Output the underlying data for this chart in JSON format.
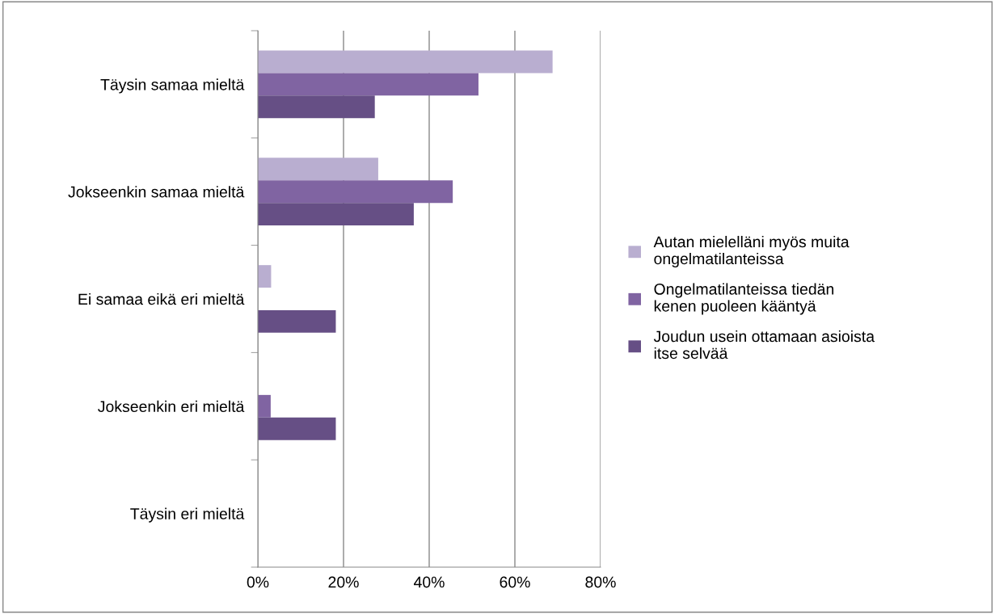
{
  "chart_data": {
    "type": "bar",
    "orientation": "horizontal",
    "categories": [
      "Täysin samaa mieltä",
      "Jokseenkin samaa mieltä",
      "Ei samaa eikä eri mieltä",
      "Jokseenkin eri mieltä",
      "Täysin eri mieltä"
    ],
    "series": [
      {
        "name": "Autan mielelläni myös muita ongelmatilanteissa",
        "color": "#b9aed0",
        "values": [
          68.8,
          28.1,
          3.1,
          0,
          0
        ]
      },
      {
        "name": "Ongelmatilanteissa tiedän kenen puoleen kääntyä",
        "color": "#8064a2",
        "values": [
          51.5,
          45.5,
          0,
          3.0,
          0
        ]
      },
      {
        "name": "Joudun usein ottamaan asioista itse selvää",
        "color": "#664f85",
        "values": [
          27.3,
          36.4,
          18.2,
          18.2,
          0
        ]
      }
    ],
    "xlim": [
      0,
      80
    ],
    "xticks": [
      {
        "value": 0,
        "label": "0%"
      },
      {
        "value": 20,
        "label": "20%"
      },
      {
        "value": 40,
        "label": "40%"
      },
      {
        "value": 60,
        "label": "60%"
      },
      {
        "value": 80,
        "label": "80%"
      }
    ],
    "grid": "x",
    "legend": "right"
  }
}
